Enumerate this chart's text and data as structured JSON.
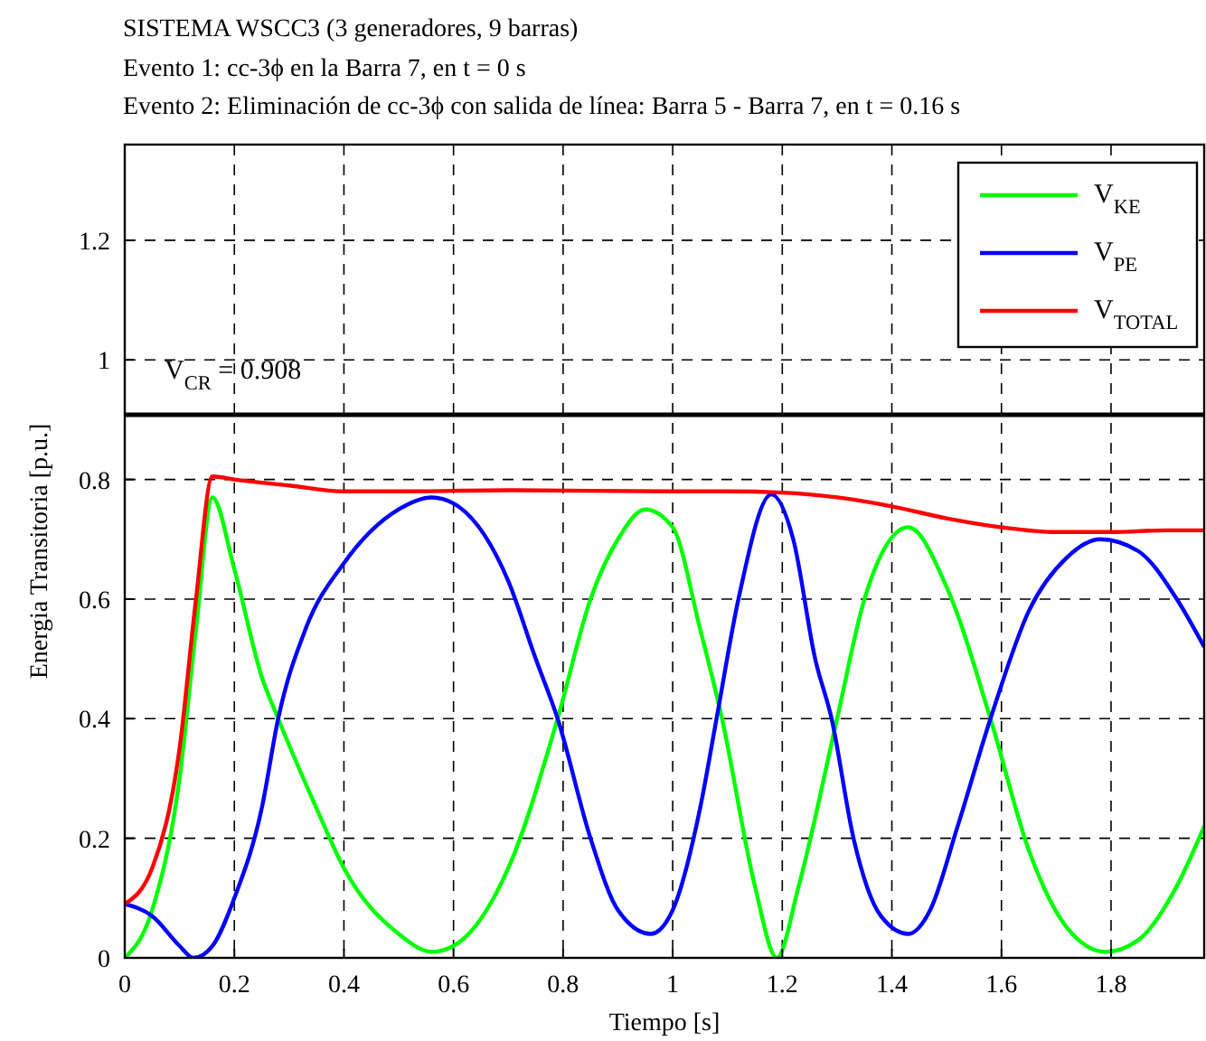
{
  "chart_data": {
    "type": "line",
    "title": "SISTEMA WSCC3 (3 generadores, 9 barras)",
    "subtitle": "Evento 1: cc-3ϕ en la Barra 7, en t = 0 s\nEvento 2: Eliminación de cc-3ϕ con salida de línea: Barra 5 - Barra 7, en t = 0.16 s",
    "xlabel": "Tiempo [s]",
    "ylabel": "Energia Transitoria [p.u.]",
    "xlim": [
      0,
      1.97
    ],
    "ylim": [
      0,
      1.36
    ],
    "xticks": [
      0,
      0.2,
      0.4,
      0.6,
      0.8,
      1,
      1.2,
      1.4,
      1.6,
      1.8
    ],
    "yticks": [
      0,
      0.2,
      0.4,
      0.6,
      0.8,
      1,
      1.2
    ],
    "grid": true,
    "legend": "top right",
    "line_style": "solid",
    "marker": "none",
    "ref_lines": [
      {
        "axis": "y",
        "value": 0.908,
        "label": "V$_{CR}$ = 0.908",
        "color": "#000000"
      }
    ],
    "series": [
      {
        "name": "V$_{KE}$",
        "color": "#00ff00",
        "x": [
          0,
          0.05,
          0.1,
          0.13,
          0.16,
          0.2,
          0.25,
          0.28,
          0.35,
          0.4,
          0.5,
          0.56,
          0.6,
          0.7,
          0.79,
          0.85,
          0.9,
          0.95,
          1.0,
          1.05,
          1.09,
          1.15,
          1.19,
          1.23,
          1.3,
          1.35,
          1.43,
          1.5,
          1.58,
          1.65,
          1.72,
          1.79,
          1.85,
          1.92,
          1.97
        ],
        "values": [
          0,
          0.08,
          0.3,
          0.55,
          0.77,
          0.65,
          0.47,
          0.4,
          0.25,
          0.15,
          0.04,
          0.01,
          0.02,
          0.15,
          0.4,
          0.6,
          0.7,
          0.75,
          0.72,
          0.55,
          0.4,
          0.12,
          0,
          0.12,
          0.4,
          0.6,
          0.72,
          0.62,
          0.4,
          0.18,
          0.05,
          0.01,
          0.03,
          0.12,
          0.22
        ]
      },
      {
        "name": "V$_{PE}$",
        "color": "#0000ff",
        "x": [
          0,
          0.05,
          0.1,
          0.125,
          0.16,
          0.2,
          0.25,
          0.28,
          0.33,
          0.4,
          0.5,
          0.56,
          0.6,
          0.7,
          0.75,
          0.79,
          0.85,
          0.9,
          0.96,
          1.0,
          1.05,
          1.08,
          1.12,
          1.18,
          1.22,
          1.26,
          1.29,
          1.33,
          1.38,
          1.43,
          1.47,
          1.52,
          1.58,
          1.65,
          1.72,
          1.78,
          1.85,
          1.92,
          1.97
        ],
        "values": [
          0.09,
          0.07,
          0.02,
          0,
          0.02,
          0.1,
          0.25,
          0.4,
          0.55,
          0.66,
          0.75,
          0.77,
          0.76,
          0.63,
          0.5,
          0.4,
          0.2,
          0.08,
          0.04,
          0.08,
          0.25,
          0.4,
          0.6,
          0.775,
          0.7,
          0.5,
          0.4,
          0.2,
          0.07,
          0.04,
          0.08,
          0.22,
          0.4,
          0.58,
          0.67,
          0.7,
          0.68,
          0.6,
          0.52
        ]
      },
      {
        "name": "V$_{TOTAL}$",
        "color": "#ff0000",
        "x": [
          0,
          0.05,
          0.1,
          0.13,
          0.16,
          0.2,
          0.3,
          0.4,
          0.5,
          0.7,
          1.0,
          1.1,
          1.2,
          1.3,
          1.4,
          1.5,
          1.6,
          1.7,
          1.8,
          1.9,
          1.97
        ],
        "values": [
          0.09,
          0.15,
          0.35,
          0.6,
          0.805,
          0.8,
          0.79,
          0.78,
          0.78,
          0.782,
          0.78,
          0.78,
          0.778,
          0.77,
          0.755,
          0.735,
          0.72,
          0.712,
          0.712,
          0.715,
          0.715
        ]
      }
    ]
  }
}
